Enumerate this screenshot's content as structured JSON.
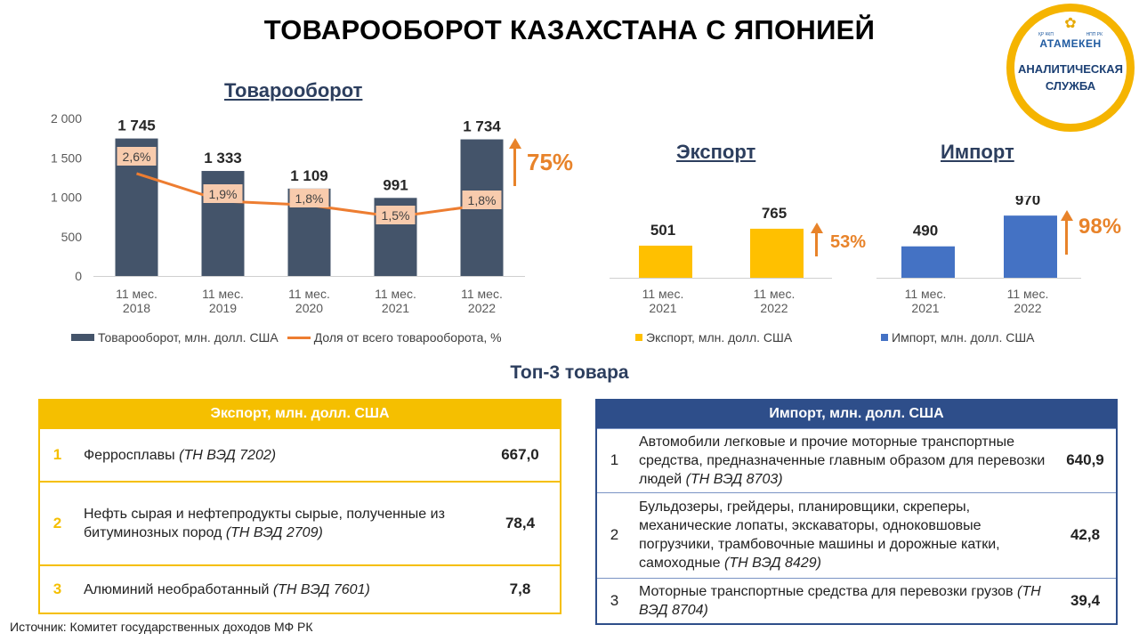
{
  "title": "ТОВАРООБОРОТ КАЗАХСТАНА С ЯПОНИЕЙ",
  "logo": {
    "small_left": "ҚР ҰКП",
    "small_right": "НПП РК",
    "name": "АТАМЕКЕН",
    "line1": "АНАЛИТИЧЕСКАЯ",
    "line2": "СЛУЖБА"
  },
  "colors": {
    "turnover_bar": "#44546A",
    "share_line": "#ED7D31",
    "share_label_bg": "#F8CBAD",
    "export_bar": "#FFC000",
    "import_bar": "#4472C4",
    "growth": "#E8832A"
  },
  "chart_data": [
    {
      "type": "bar",
      "title": "Товарооборот",
      "categories": [
        "11 мес.\n2018",
        "11 мес.\n2019",
        "11 мес.\n2020",
        "11 мес.\n2021",
        "11 мес.\n2022"
      ],
      "series": [
        {
          "name": "Товарооборот, млн. долл. США",
          "type": "bar",
          "values": [
            1745,
            1333,
            1109,
            991,
            1734
          ],
          "labels": [
            "1 745",
            "1 333",
            "1 109",
            "991",
            "1 734"
          ]
        },
        {
          "name": "Доля от всего товарооборота, %",
          "type": "line",
          "values": [
            2.6,
            1.9,
            1.8,
            1.5,
            1.8
          ],
          "labels": [
            "2,6%",
            "1,9%",
            "1,8%",
            "1,5%",
            "1,8%"
          ]
        }
      ],
      "yticks": [
        "2 000",
        "1 500",
        "1 000",
        "500",
        "0"
      ],
      "ylim": [
        0,
        2000
      ],
      "growth": "75%",
      "legend": "bottom"
    },
    {
      "type": "bar",
      "title": "Экспорт",
      "categories": [
        "11 мес.\n2021",
        "11 мес.\n2022"
      ],
      "series": [
        {
          "name": "Экспорт, млн. долл.  США",
          "values": [
            501,
            765
          ],
          "labels": [
            "501",
            "765"
          ]
        }
      ],
      "growth": "53%",
      "legend": "bottom"
    },
    {
      "type": "bar",
      "title": "Импорт",
      "categories": [
        "11 мес.\n2021",
        "11 мес.\n2022"
      ],
      "series": [
        {
          "name": "Импорт, млн. долл.  США",
          "values": [
            490,
            970
          ],
          "labels": [
            "490",
            "970"
          ]
        }
      ],
      "growth": "98%",
      "legend": "bottom"
    }
  ],
  "top3_title": "Топ-3 товара",
  "export_table": {
    "header": "Экспорт, млн. долл. США",
    "rows": [
      {
        "num": "1",
        "name": "Ферросплавы ",
        "code": "(ТН ВЭД 7202)",
        "value": "667,0"
      },
      {
        "num": "2",
        "name": "Нефть сырая и нефтепродукты сырые, полученные из битуминозных пород ",
        "code": "(ТН ВЭД 2709)",
        "value": "78,4"
      },
      {
        "num": "3",
        "name": "Алюминий  необработанный ",
        "code": "(ТН ВЭД 7601)",
        "value": "7,8"
      }
    ]
  },
  "import_table": {
    "header": "Импорт, млн. долл. США",
    "rows": [
      {
        "num": "1",
        "name": "Автомобили легковые и прочие моторные транспортные средства, предназначенные главным образом для перевозки людей ",
        "code": "(ТН ВЭД 8703)",
        "value": "640,9"
      },
      {
        "num": "2",
        "name": "Бульдозеры, грейдеры, планировщики,  скреперы, механические лопаты, экскаваторы, одноковшовые погрузчики, трамбовочные машины и дорожные катки,  самоходные ",
        "code": "(ТН ВЭД 8429)",
        "value": "42,8"
      },
      {
        "num": "3",
        "name": "Моторные транспортные средства для перевозки грузов ",
        "code": "(ТН ВЭД 8704)",
        "value": "39,4"
      }
    ]
  },
  "source": "Источник: Комитет государственных доходов МФ РК"
}
